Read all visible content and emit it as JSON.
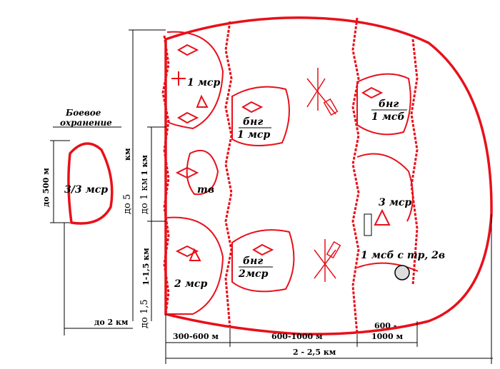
{
  "labels": {
    "guard_title_1": "Боевое",
    "guard_title_2": "охранение",
    "guard_unit": "3/3 мср",
    "co1": "1 мср",
    "co2": "2 мср",
    "co3": "3 мср",
    "tank": "тв",
    "bng1_top": "бнг",
    "bng1_bot": "1 мср",
    "bng2_top": "бнг",
    "bng2_bot": "2мср",
    "bng3_top": "бнг",
    "bng3_bot": "1 мсб",
    "main_body": "1 мсб с тр, 2в"
  },
  "dimensions": {
    "guard_height": "до 500 м",
    "guard_dist": "до 2 км",
    "total_depth_v": "до 5",
    "total_depth_v2": "км",
    "between_v": "до 1 км",
    "between_v2": "1 км",
    "co_front_v": "1-1,5 км",
    "co_front_v2": "до 1,5",
    "seg1": "300-600 м",
    "seg2": "600-1000 м",
    "seg3_a": "600 -",
    "seg3_b": "1000 м",
    "total_width": "2 - 2,5 км"
  }
}
